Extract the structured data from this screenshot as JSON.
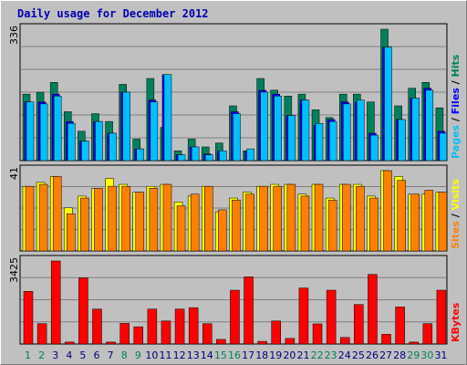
{
  "title": "Daily usage for December 2012",
  "colors": {
    "hits": "#00805c",
    "files": "#0000ff",
    "pages": "#00c0ff",
    "visits": "#ffff00",
    "sites": "#ff8000",
    "kbytes": "#ff0000",
    "weekday_label": "#000080",
    "weekend_label": "#00805c"
  },
  "chart_data": [
    {
      "type": "bar",
      "name": "hits-files-pages",
      "ymax_label": "336",
      "ymax": 336,
      "legend": [
        "Pages",
        "Files",
        "Hits"
      ],
      "series": [
        {
          "name": "Hits",
          "values": [
            170,
            175,
            200,
            125,
            75,
            120,
            100,
            195,
            55,
            210,
            85,
            25,
            55,
            35,
            45,
            140,
            25,
            210,
            180,
            165,
            170,
            130,
            110,
            170,
            170,
            150,
            336,
            140,
            185,
            200,
            135
          ]
        },
        {
          "name": "Files",
          "values": [
            150,
            150,
            170,
            100,
            50,
            100,
            70,
            175,
            30,
            155,
            220,
            15,
            35,
            17,
            25,
            125,
            23,
            180,
            170,
            115,
            155,
            90,
            105,
            150,
            150,
            70,
            290,
            105,
            160,
            185,
            75
          ]
        },
        {
          "name": "Pages",
          "values": [
            150,
            145,
            165,
            95,
            50,
            100,
            70,
            175,
            30,
            150,
            220,
            15,
            35,
            15,
            25,
            120,
            30,
            175,
            165,
            115,
            155,
            95,
            100,
            145,
            155,
            65,
            290,
            105,
            160,
            180,
            70
          ]
        }
      ]
    },
    {
      "type": "bar",
      "name": "visits-sites",
      "ymax_label": "41",
      "ymax": 41,
      "legend": [
        "Sites",
        "Visits"
      ],
      "series": [
        {
          "name": "Visits",
          "values": [
            33,
            35,
            38,
            22,
            28,
            32,
            37,
            34,
            30,
            33,
            34,
            25,
            28,
            33,
            20,
            27,
            30,
            33,
            34,
            34,
            29,
            34,
            27,
            34,
            34,
            28,
            41,
            38,
            29,
            29,
            30
          ]
        },
        {
          "name": "Sites",
          "values": [
            33,
            34,
            38,
            19,
            27,
            32,
            33,
            33,
            30,
            32,
            34,
            23,
            29,
            33,
            21,
            26,
            29,
            33,
            33,
            34,
            28,
            34,
            26,
            34,
            33,
            27,
            41,
            36,
            29,
            31,
            30
          ]
        }
      ]
    },
    {
      "type": "bar",
      "name": "kbytes",
      "ymax_label": "3425",
      "ymax": 3425,
      "legend": [
        "KBytes"
      ],
      "series": [
        {
          "name": "KBytes",
          "values": [
            2170,
            840,
            3425,
            80,
            2730,
            1440,
            80,
            850,
            710,
            1440,
            950,
            1440,
            1500,
            840,
            190,
            2220,
            2770,
            110,
            950,
            230,
            2310,
            830,
            2220,
            270,
            1630,
            2870,
            400,
            1530,
            80,
            840,
            2220
          ]
        }
      ]
    }
  ],
  "x_labels": [
    "1",
    "2",
    "3",
    "4",
    "5",
    "6",
    "7",
    "8",
    "9",
    "10",
    "11",
    "12",
    "13",
    "14",
    "15",
    "16",
    "17",
    "18",
    "19",
    "20",
    "21",
    "22",
    "23",
    "24",
    "25",
    "26",
    "27",
    "28",
    "29",
    "30",
    "31"
  ],
  "weekend_days": [
    1,
    2,
    8,
    9,
    15,
    16,
    22,
    23,
    29,
    30
  ]
}
